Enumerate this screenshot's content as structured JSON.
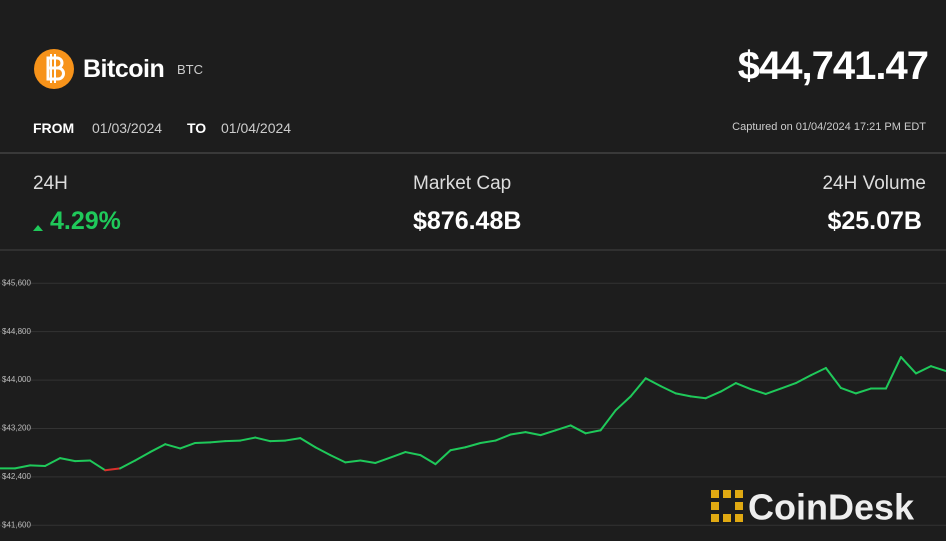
{
  "header": {
    "name": "Bitcoin",
    "symbol": "BTC",
    "price": "$44,741.47",
    "from_label": "FROM",
    "from_date": "01/03/2024",
    "to_label": "TO",
    "to_date": "01/04/2024",
    "captured": "Captured on 01/04/2024 17:21 PM EDT"
  },
  "stats": [
    {
      "label": "24H",
      "value": "4.29%"
    },
    {
      "label": "Market Cap",
      "value": "$876.48B"
    },
    {
      "label": "24H Volume",
      "value": "$25.07B"
    }
  ],
  "watermark": "CoinDesk",
  "chart_data": {
    "type": "line",
    "values": [
      42540,
      42540,
      42590,
      42580,
      42710,
      42660,
      42670,
      42510,
      42540,
      42670,
      42810,
      42940,
      42870,
      42960,
      42970,
      42990,
      43000,
      43050,
      42990,
      43000,
      43040,
      42890,
      42760,
      42640,
      42670,
      42630,
      42720,
      42810,
      42760,
      42610,
      42840,
      42890,
      42960,
      43000,
      43100,
      43140,
      43090,
      43170,
      43250,
      43120,
      43170,
      43500,
      43730,
      44030,
      43900,
      43780,
      43730,
      43700,
      43810,
      43950,
      43850,
      43770,
      43860,
      43950,
      44080,
      44200,
      43870,
      43780,
      43860,
      43860,
      44380,
      44110,
      44230,
      44150
    ],
    "colors": {
      "up": "#1fc95a",
      "down": "#d9302c"
    },
    "ylim": [
      41340,
      46150
    ],
    "yticks": [
      {
        "value": 45600,
        "label": "$45,600"
      },
      {
        "value": 44800,
        "label": "$44,800"
      },
      {
        "value": 44000,
        "label": "$44,000"
      },
      {
        "value": 43200,
        "label": "$43,200"
      },
      {
        "value": 42400,
        "label": "$42,400"
      },
      {
        "value": 41600,
        "label": "$41,600"
      }
    ],
    "grid": true
  }
}
